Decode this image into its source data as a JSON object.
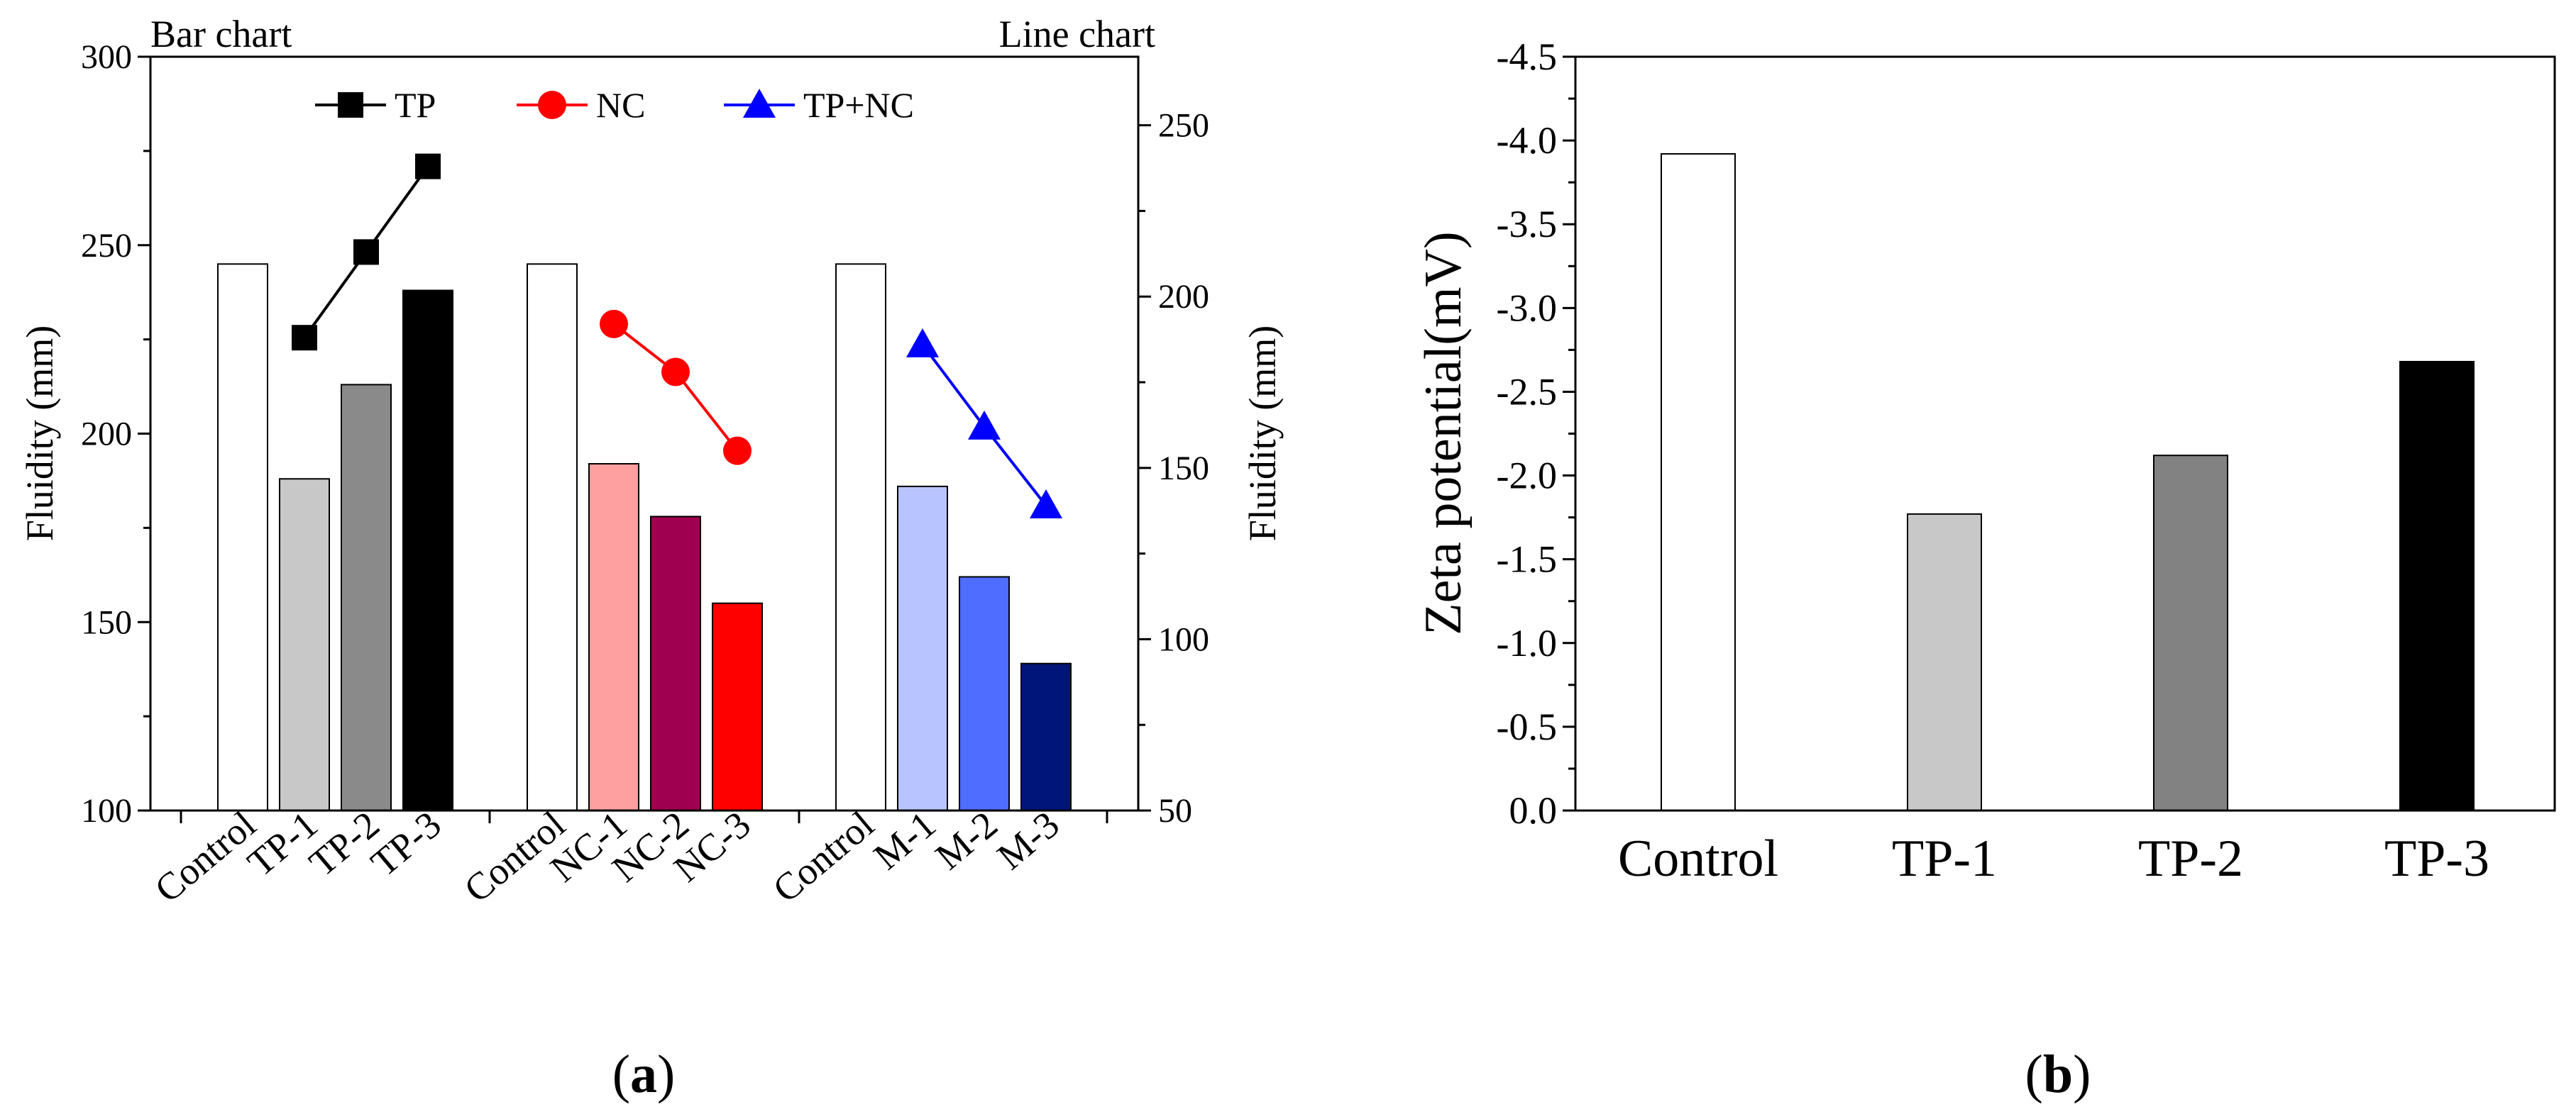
{
  "chart_data": [
    {
      "type": "bar+line",
      "panel_label": "a",
      "corner_left": "Bar chart",
      "corner_right": "Line chart",
      "ylabel_left": "Fluidity (mm)",
      "ylabel_right": "Fluidity (mm)",
      "ylim_left": [
        100,
        300
      ],
      "ylim_right": [
        50,
        270
      ],
      "yticks_left": [
        100,
        150,
        200,
        250,
        300
      ],
      "yticks_right": [
        50,
        100,
        150,
        200,
        250
      ],
      "grid": false,
      "legend_position": "top",
      "groups": [
        {
          "bars": [
            {
              "label": "Control",
              "value": 245,
              "color": "#ffffff"
            },
            {
              "label": "TP-1",
              "value": 188,
              "color": "#c8c8c8"
            },
            {
              "label": "TP-2",
              "value": 213,
              "color": "#8a8a8a"
            },
            {
              "label": "TP-3",
              "value": 238,
              "color": "#000000"
            }
          ]
        },
        {
          "bars": [
            {
              "label": "Control",
              "value": 245,
              "color": "#ffffff"
            },
            {
              "label": "NC-1",
              "value": 192,
              "color": "#ffa0a0"
            },
            {
              "label": "NC-2",
              "value": 178,
              "color": "#a00050"
            },
            {
              "label": "NC-3",
              "value": 155,
              "color": "#ff0000"
            }
          ]
        },
        {
          "bars": [
            {
              "label": "Control",
              "value": 245,
              "color": "#ffffff"
            },
            {
              "label": "M-1",
              "value": 186,
              "color": "#b8c4ff"
            },
            {
              "label": "M-2",
              "value": 162,
              "color": "#4f6dff"
            },
            {
              "label": "M-3",
              "value": 139,
              "color": "#00157a"
            }
          ]
        }
      ],
      "series": [
        {
          "name": "TP",
          "marker": "square",
          "color": "#000000",
          "group": 0,
          "values": [
            188,
            213,
            238
          ]
        },
        {
          "name": "NC",
          "marker": "circle",
          "color": "#ff0000",
          "group": 1,
          "values": [
            192,
            178,
            155
          ]
        },
        {
          "name": "TP+NC",
          "marker": "triangle",
          "color": "#0000ff",
          "group": 2,
          "values": [
            186,
            162,
            139
          ]
        }
      ]
    },
    {
      "type": "bar",
      "panel_label": "b",
      "categories": [
        "Control",
        "TP-1",
        "TP-2",
        "TP-3"
      ],
      "values": [
        -3.92,
        -1.77,
        -2.12,
        -2.68
      ],
      "colors": [
        "#ffffff",
        "#c8c8c8",
        "#828282",
        "#000000"
      ],
      "ylabel": "Zeta potential(mV)",
      "ylim": [
        0,
        -4.5
      ],
      "yticks": [
        0.0,
        -0.5,
        -1.0,
        -1.5,
        -2.0,
        -2.5,
        -3.0,
        -3.5,
        -4.0,
        -4.5
      ],
      "grid": false
    }
  ],
  "captions": [
    {
      "open": "(",
      "label": "a",
      "close": ")"
    },
    {
      "open": "(",
      "label": "b",
      "close": ")"
    }
  ]
}
